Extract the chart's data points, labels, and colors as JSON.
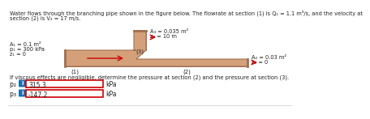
{
  "title_line1": "Water flows through the branching pipe shown in the figure below. The flowrate at section (1) is Q₁ = 1.1 m³/s, and the velocity at",
  "title_line2": "section (2) is V₂ = 17 m/s.",
  "left_labels": [
    "A₁ = 0.1 m²",
    "p₁ = 300 kPa",
    "z₁ = 0"
  ],
  "top_labels": [
    "A₃ = 0.035 m²",
    "z₃ = 10 m"
  ],
  "right_labels": [
    "A₂ = 0.03 m²",
    "z₂ = 0"
  ],
  "section1_label": "(1)",
  "section2_label": "(2)",
  "section3_label": "(3)",
  "question": "If viscous effects are negligible, determine the pressure at section (2) and the pressure at section (3).",
  "p2_label": "p₂ =",
  "p2_value": "315.3",
  "p3_label": "p₃ =",
  "p3_value": "-147.2",
  "unit": "kPa",
  "pipe_color": "#d4a07a",
  "pipe_edge_color": "#a07050",
  "bg_color": "#ffffff",
  "input_box_color": "#ffffff",
  "input_box_edge": "#cc0000",
  "info_btn_color": "#1a6faf",
  "info_btn_text": "i",
  "arrow_color": "#cc0000"
}
